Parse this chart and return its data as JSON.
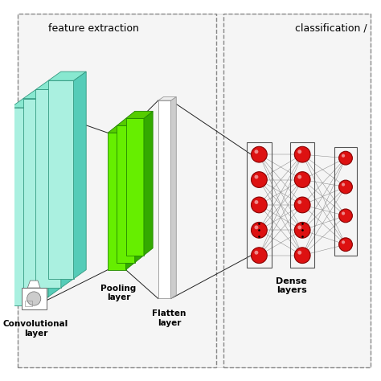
{
  "bg_color": "#ffffff",
  "title_feature": "feature extraction",
  "title_class": "classification /",
  "label_conv": "Convolutional\nlayer",
  "label_pool": "Pooling\nlayer",
  "label_flatten": "Flatten\nlayer",
  "label_dense": "Dense\nlayers",
  "conv_color_front": "#aaf0e0",
  "conv_color_side": "#55ccb8",
  "conv_color_top": "#88e8d0",
  "conv_color_edge": "#339980",
  "pool_color_front": "#66ee00",
  "pool_color_side": "#33aa00",
  "pool_color_top": "#55cc00",
  "pool_color_edge": "#228800",
  "flatten_color_front": "#ffffff",
  "flatten_color_side": "#cccccc",
  "flatten_color_top": "#eeeeee",
  "flatten_color_edge": "#999999",
  "node_color": "#dd1111",
  "node_edge": "#880000",
  "node_highlight": "#ff6666",
  "line_color": "#222222",
  "conn_color": "#888888",
  "dashed_color": "#888888",
  "box_bg": "#f5f5f5"
}
